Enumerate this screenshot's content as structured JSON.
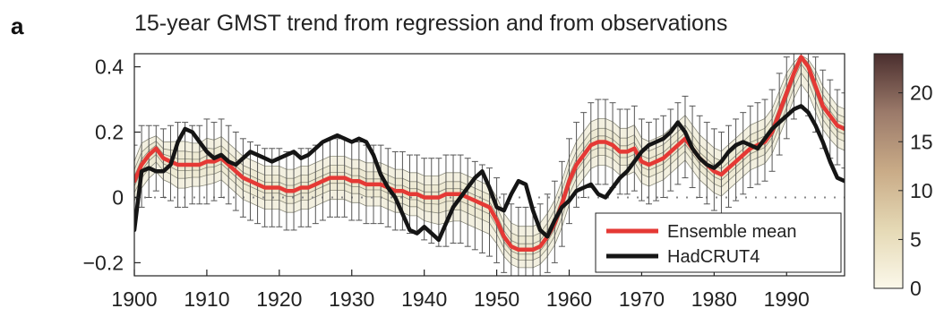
{
  "panel_label": "a",
  "colors": {
    "ensemble": "#e53935",
    "hadcrut": "#151515",
    "error_bar": "#555555",
    "contour_fill": "#e9e3c6",
    "contour_line": "#8a8a7a",
    "colorbar_stops": [
      "#fbf8ea",
      "#e5d9b5",
      "#c9ab87",
      "#9b7a6a",
      "#4a2e2e"
    ]
  },
  "chart_data": {
    "type": "line",
    "title": "15-year GMST trend from regression and from observations",
    "xlabel": "",
    "ylabel": "",
    "xlim": [
      1900,
      1998
    ],
    "ylim": [
      -0.24,
      0.44
    ],
    "xticks": [
      1900,
      1910,
      1920,
      1930,
      1940,
      1950,
      1960,
      1970,
      1980,
      1990
    ],
    "yticks": [
      -0.2,
      0,
      0.2,
      0.4
    ],
    "ytick_labels": [
      "−0.2",
      "0",
      "0.2",
      "0.4"
    ],
    "legend_position": "bottom-right",
    "zero_reference": "dotted",
    "grid": false,
    "series": [
      {
        "name": "Ensemble mean",
        "x": [
          1900,
          1901,
          1902,
          1903,
          1904,
          1905,
          1906,
          1907,
          1908,
          1909,
          1910,
          1911,
          1912,
          1913,
          1914,
          1915,
          1916,
          1917,
          1918,
          1919,
          1920,
          1921,
          1922,
          1923,
          1924,
          1925,
          1926,
          1927,
          1928,
          1929,
          1930,
          1931,
          1932,
          1933,
          1934,
          1935,
          1936,
          1937,
          1938,
          1939,
          1940,
          1941,
          1942,
          1943,
          1944,
          1945,
          1946,
          1947,
          1948,
          1949,
          1950,
          1951,
          1952,
          1953,
          1954,
          1955,
          1956,
          1957,
          1958,
          1959,
          1960,
          1961,
          1962,
          1963,
          1964,
          1965,
          1966,
          1967,
          1968,
          1969,
          1970,
          1971,
          1972,
          1973,
          1974,
          1975,
          1976,
          1977,
          1978,
          1979,
          1980,
          1981,
          1982,
          1983,
          1984,
          1985,
          1986,
          1987,
          1988,
          1989,
          1990,
          1991,
          1992,
          1993,
          1994,
          1995,
          1996,
          1997,
          1998
        ],
        "values": [
          0.05,
          0.1,
          0.13,
          0.15,
          0.12,
          0.11,
          0.1,
          0.1,
          0.1,
          0.1,
          0.11,
          0.11,
          0.12,
          0.1,
          0.08,
          0.06,
          0.05,
          0.04,
          0.03,
          0.03,
          0.03,
          0.02,
          0.02,
          0.03,
          0.03,
          0.04,
          0.05,
          0.06,
          0.06,
          0.06,
          0.05,
          0.05,
          0.04,
          0.04,
          0.04,
          0.03,
          0.02,
          0.02,
          0.01,
          0.01,
          0.0,
          0.0,
          0.0,
          0.01,
          0.01,
          0.01,
          0.0,
          -0.01,
          -0.02,
          -0.03,
          -0.07,
          -0.12,
          -0.15,
          -0.16,
          -0.16,
          -0.16,
          -0.15,
          -0.12,
          -0.08,
          -0.02,
          0.05,
          0.1,
          0.13,
          0.16,
          0.17,
          0.17,
          0.16,
          0.14,
          0.14,
          0.15,
          0.11,
          0.1,
          0.11,
          0.12,
          0.14,
          0.16,
          0.18,
          0.15,
          0.12,
          0.1,
          0.08,
          0.07,
          0.09,
          0.11,
          0.13,
          0.15,
          0.16,
          0.17,
          0.2,
          0.26,
          0.32,
          0.38,
          0.43,
          0.4,
          0.34,
          0.28,
          0.25,
          0.22,
          0.21
        ],
        "ci_lower": [
          -0.06,
          -0.03,
          0.0,
          0.02,
          0.0,
          -0.01,
          -0.03,
          -0.03,
          -0.02,
          -0.02,
          -0.02,
          -0.01,
          0.0,
          -0.02,
          -0.04,
          -0.06,
          -0.07,
          -0.08,
          -0.09,
          -0.09,
          -0.09,
          -0.1,
          -0.1,
          -0.09,
          -0.09,
          -0.08,
          -0.07,
          -0.06,
          -0.06,
          -0.06,
          -0.07,
          -0.07,
          -0.08,
          -0.08,
          -0.08,
          -0.09,
          -0.1,
          -0.1,
          -0.11,
          -0.11,
          -0.13,
          -0.14,
          -0.15,
          -0.15,
          -0.14,
          -0.14,
          -0.15,
          -0.16,
          -0.17,
          -0.18,
          -0.2,
          -0.23,
          -0.25,
          -0.26,
          -0.26,
          -0.26,
          -0.25,
          -0.23,
          -0.2,
          -0.15,
          -0.08,
          -0.03,
          0.0,
          0.03,
          0.04,
          0.04,
          0.03,
          0.01,
          0.01,
          0.02,
          -0.01,
          -0.02,
          -0.01,
          0.0,
          0.02,
          0.04,
          0.06,
          0.03,
          0.0,
          -0.02,
          -0.04,
          -0.05,
          -0.03,
          -0.01,
          0.01,
          0.03,
          0.04,
          0.05,
          0.08,
          0.13,
          0.18,
          0.24,
          0.28,
          0.25,
          0.2,
          0.15,
          0.12,
          0.1,
          0.09
        ],
        "ci_upper": [
          0.16,
          0.22,
          0.22,
          0.22,
          0.21,
          0.22,
          0.23,
          0.23,
          0.22,
          0.22,
          0.24,
          0.23,
          0.24,
          0.22,
          0.2,
          0.18,
          0.17,
          0.16,
          0.15,
          0.15,
          0.15,
          0.14,
          0.14,
          0.15,
          0.15,
          0.16,
          0.17,
          0.18,
          0.18,
          0.18,
          0.17,
          0.17,
          0.16,
          0.16,
          0.16,
          0.15,
          0.14,
          0.14,
          0.13,
          0.13,
          0.12,
          0.12,
          0.12,
          0.13,
          0.13,
          0.13,
          0.12,
          0.11,
          0.1,
          0.09,
          0.06,
          0.01,
          -0.02,
          -0.03,
          -0.03,
          -0.03,
          -0.02,
          0.01,
          0.05,
          0.11,
          0.18,
          0.23,
          0.26,
          0.29,
          0.3,
          0.3,
          0.29,
          0.27,
          0.27,
          0.28,
          0.24,
          0.23,
          0.24,
          0.25,
          0.27,
          0.29,
          0.31,
          0.28,
          0.25,
          0.23,
          0.21,
          0.2,
          0.22,
          0.24,
          0.26,
          0.28,
          0.29,
          0.3,
          0.33,
          0.38,
          0.43,
          0.44,
          0.44,
          0.44,
          0.43,
          0.39,
          0.36,
          0.33,
          0.32
        ]
      },
      {
        "name": "HadCRUT4",
        "x": [
          1900,
          1901,
          1902,
          1903,
          1904,
          1905,
          1906,
          1907,
          1908,
          1909,
          1910,
          1911,
          1912,
          1913,
          1914,
          1915,
          1916,
          1917,
          1918,
          1919,
          1920,
          1921,
          1922,
          1923,
          1924,
          1925,
          1926,
          1927,
          1928,
          1929,
          1930,
          1931,
          1932,
          1933,
          1934,
          1935,
          1936,
          1937,
          1938,
          1939,
          1940,
          1941,
          1942,
          1943,
          1944,
          1945,
          1946,
          1947,
          1948,
          1949,
          1950,
          1951,
          1952,
          1953,
          1954,
          1955,
          1956,
          1957,
          1958,
          1959,
          1960,
          1961,
          1962,
          1963,
          1964,
          1965,
          1966,
          1967,
          1968,
          1969,
          1970,
          1971,
          1972,
          1973,
          1974,
          1975,
          1976,
          1977,
          1978,
          1979,
          1980,
          1981,
          1982,
          1983,
          1984,
          1985,
          1986,
          1987,
          1988,
          1989,
          1990,
          1991,
          1992,
          1993,
          1994,
          1995,
          1996,
          1997,
          1998
        ],
        "values": [
          -0.1,
          0.08,
          0.09,
          0.08,
          0.08,
          0.1,
          0.17,
          0.21,
          0.2,
          0.17,
          0.14,
          0.12,
          0.13,
          0.11,
          0.1,
          0.12,
          0.14,
          0.13,
          0.12,
          0.11,
          0.12,
          0.13,
          0.14,
          0.12,
          0.13,
          0.15,
          0.17,
          0.18,
          0.19,
          0.18,
          0.17,
          0.18,
          0.17,
          0.13,
          0.07,
          0.03,
          0.0,
          -0.05,
          -0.1,
          -0.11,
          -0.09,
          -0.11,
          -0.13,
          -0.08,
          -0.03,
          0.0,
          0.03,
          0.06,
          0.08,
          0.03,
          -0.03,
          -0.04,
          0.01,
          0.05,
          0.04,
          -0.04,
          -0.1,
          -0.12,
          -0.07,
          -0.03,
          -0.01,
          0.02,
          0.03,
          0.04,
          0.01,
          0.0,
          0.03,
          0.06,
          0.08,
          0.11,
          0.14,
          0.16,
          0.17,
          0.18,
          0.2,
          0.23,
          0.2,
          0.15,
          0.12,
          0.1,
          0.09,
          0.11,
          0.14,
          0.16,
          0.17,
          0.16,
          0.15,
          0.18,
          0.21,
          0.23,
          0.25,
          0.27,
          0.28,
          0.26,
          0.22,
          0.17,
          0.11,
          0.06,
          0.05
        ]
      }
    ],
    "colorbar": {
      "range": [
        0,
        24
      ],
      "ticks": [
        0,
        5,
        10,
        15,
        20
      ],
      "tick_labels": [
        "0",
        "5",
        "10",
        "15",
        "20"
      ]
    }
  }
}
